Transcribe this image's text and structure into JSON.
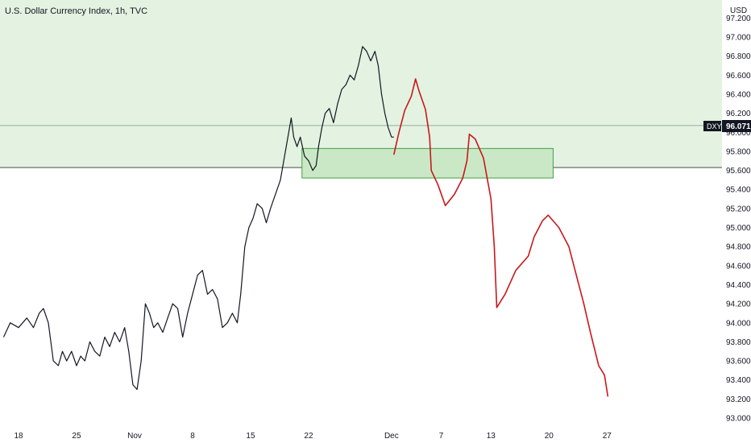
{
  "chart_data": {
    "type": "line",
    "title": "U.S. Dollar Currency Index, 1h, TVC",
    "currency": "USD",
    "symbol_tag": "DXY",
    "last_price": "96.071",
    "last_price_value": 96.071,
    "y_ticks": [
      "97.200",
      "97.000",
      "96.800",
      "96.600",
      "96.400",
      "96.200",
      "96.000",
      "95.800",
      "95.600",
      "95.400",
      "95.200",
      "95.000",
      "94.800",
      "94.600",
      "94.400",
      "94.200",
      "94.000",
      "93.800",
      "93.600",
      "93.400",
      "93.200",
      "93.000"
    ],
    "x_ticks": [
      {
        "label": "18",
        "day": 0
      },
      {
        "label": "25",
        "day": 7
      },
      {
        "label": "Nov",
        "day": 14
      },
      {
        "label": "8",
        "day": 21
      },
      {
        "label": "15",
        "day": 28
      },
      {
        "label": "22",
        "day": 35
      },
      {
        "label": "Dec",
        "day": 45
      },
      {
        "label": "7",
        "day": 51
      },
      {
        "label": "13",
        "day": 57
      },
      {
        "label": "20",
        "day": 64
      },
      {
        "label": "27",
        "day": 71
      }
    ],
    "ylim": [
      93.0,
      97.25
    ],
    "resistance_level": 95.63,
    "supply_zone": {
      "top": 97.25,
      "bottom": 95.63
    },
    "demand_box": {
      "day_start": 34.2,
      "day_end": 64.5,
      "top": 95.83,
      "bottom": 95.52
    },
    "price_series": {
      "name": "DXY",
      "points": [
        [
          -1.8,
          93.85
        ],
        [
          -1.0,
          94.0
        ],
        [
          0.0,
          93.95
        ],
        [
          1.0,
          94.05
        ],
        [
          1.8,
          93.95
        ],
        [
          2.5,
          94.1
        ],
        [
          3.0,
          94.15
        ],
        [
          3.6,
          94.0
        ],
        [
          4.2,
          93.6
        ],
        [
          4.8,
          93.55
        ],
        [
          5.3,
          93.7
        ],
        [
          5.8,
          93.6
        ],
        [
          6.4,
          93.7
        ],
        [
          7.0,
          93.55
        ],
        [
          7.5,
          93.65
        ],
        [
          8.0,
          93.6
        ],
        [
          8.6,
          93.8
        ],
        [
          9.2,
          93.7
        ],
        [
          9.8,
          93.65
        ],
        [
          10.4,
          93.85
        ],
        [
          11.0,
          93.75
        ],
        [
          11.6,
          93.9
        ],
        [
          12.2,
          93.8
        ],
        [
          12.8,
          93.95
        ],
        [
          13.3,
          93.7
        ],
        [
          13.8,
          93.35
        ],
        [
          14.3,
          93.3
        ],
        [
          14.8,
          93.6
        ],
        [
          15.3,
          94.2
        ],
        [
          15.8,
          94.1
        ],
        [
          16.3,
          93.95
        ],
        [
          16.8,
          94.0
        ],
        [
          17.4,
          93.9
        ],
        [
          18.0,
          94.05
        ],
        [
          18.6,
          94.2
        ],
        [
          19.2,
          94.15
        ],
        [
          19.8,
          93.85
        ],
        [
          20.4,
          94.1
        ],
        [
          21.0,
          94.3
        ],
        [
          21.6,
          94.5
        ],
        [
          22.2,
          94.55
        ],
        [
          22.8,
          94.3
        ],
        [
          23.4,
          94.35
        ],
        [
          24.0,
          94.25
        ],
        [
          24.6,
          93.95
        ],
        [
          25.2,
          94.0
        ],
        [
          25.8,
          94.1
        ],
        [
          26.4,
          94.0
        ],
        [
          26.8,
          94.3
        ],
        [
          27.3,
          94.8
        ],
        [
          27.8,
          95.0
        ],
        [
          28.3,
          95.1
        ],
        [
          28.8,
          95.25
        ],
        [
          29.4,
          95.2
        ],
        [
          29.9,
          95.05
        ],
        [
          30.4,
          95.2
        ],
        [
          31.0,
          95.35
        ],
        [
          31.6,
          95.5
        ],
        [
          32.2,
          95.8
        ],
        [
          32.6,
          96.0
        ],
        [
          32.9,
          96.15
        ],
        [
          33.2,
          95.95
        ],
        [
          33.6,
          95.85
        ],
        [
          34.0,
          95.95
        ],
        [
          34.5,
          95.75
        ],
        [
          35.0,
          95.7
        ],
        [
          35.5,
          95.6
        ],
        [
          35.9,
          95.65
        ],
        [
          36.2,
          95.85
        ],
        [
          36.6,
          96.05
        ],
        [
          37.0,
          96.2
        ],
        [
          37.5,
          96.25
        ],
        [
          38.0,
          96.1
        ],
        [
          38.5,
          96.3
        ],
        [
          39.0,
          96.45
        ],
        [
          39.5,
          96.5
        ],
        [
          40.0,
          96.6
        ],
        [
          40.5,
          96.55
        ],
        [
          41.0,
          96.7
        ],
        [
          41.5,
          96.9
        ],
        [
          42.0,
          96.85
        ],
        [
          42.5,
          96.75
        ],
        [
          43.0,
          96.85
        ],
        [
          43.4,
          96.7
        ],
        [
          43.8,
          96.4
        ],
        [
          44.2,
          96.2
        ],
        [
          44.6,
          96.05
        ],
        [
          45.0,
          95.95
        ],
        [
          45.3,
          95.95
        ]
      ]
    },
    "projection_series": {
      "name": "Projection",
      "points": [
        [
          45.3,
          95.77
        ],
        [
          45.9,
          96.0
        ],
        [
          46.6,
          96.23
        ],
        [
          47.4,
          96.38
        ],
        [
          47.9,
          96.56
        ],
        [
          48.3,
          96.44
        ],
        [
          49.1,
          96.24
        ],
        [
          49.6,
          95.95
        ],
        [
          49.8,
          95.6
        ],
        [
          50.6,
          95.45
        ],
        [
          51.5,
          95.23
        ],
        [
          52.6,
          95.35
        ],
        [
          53.6,
          95.52
        ],
        [
          54.1,
          95.7
        ],
        [
          54.4,
          95.98
        ],
        [
          55.1,
          95.93
        ],
        [
          56.1,
          95.73
        ],
        [
          57.0,
          95.3
        ],
        [
          57.4,
          94.8
        ],
        [
          57.7,
          94.16
        ],
        [
          58.7,
          94.3
        ],
        [
          60.0,
          94.55
        ],
        [
          61.5,
          94.7
        ],
        [
          62.2,
          94.9
        ],
        [
          63.2,
          95.07
        ],
        [
          63.9,
          95.13
        ],
        [
          65.2,
          95.0
        ],
        [
          66.4,
          94.8
        ],
        [
          67.3,
          94.5
        ],
        [
          68.2,
          94.2
        ],
        [
          69.0,
          93.9
        ],
        [
          70.0,
          93.55
        ],
        [
          70.7,
          93.45
        ],
        [
          71.1,
          93.23
        ]
      ]
    },
    "colors": {
      "price": "#131722",
      "projection": "#c8181b",
      "supply_zone_fill": "#e3f2e1",
      "demand_box_fill": "#cbe8c6",
      "demand_box_border": "#43a047",
      "level_line": "#4a4a4a",
      "last_price_line": "#7a9a86",
      "price_tag_bg": "#131722",
      "axis_text": "#131722"
    }
  }
}
